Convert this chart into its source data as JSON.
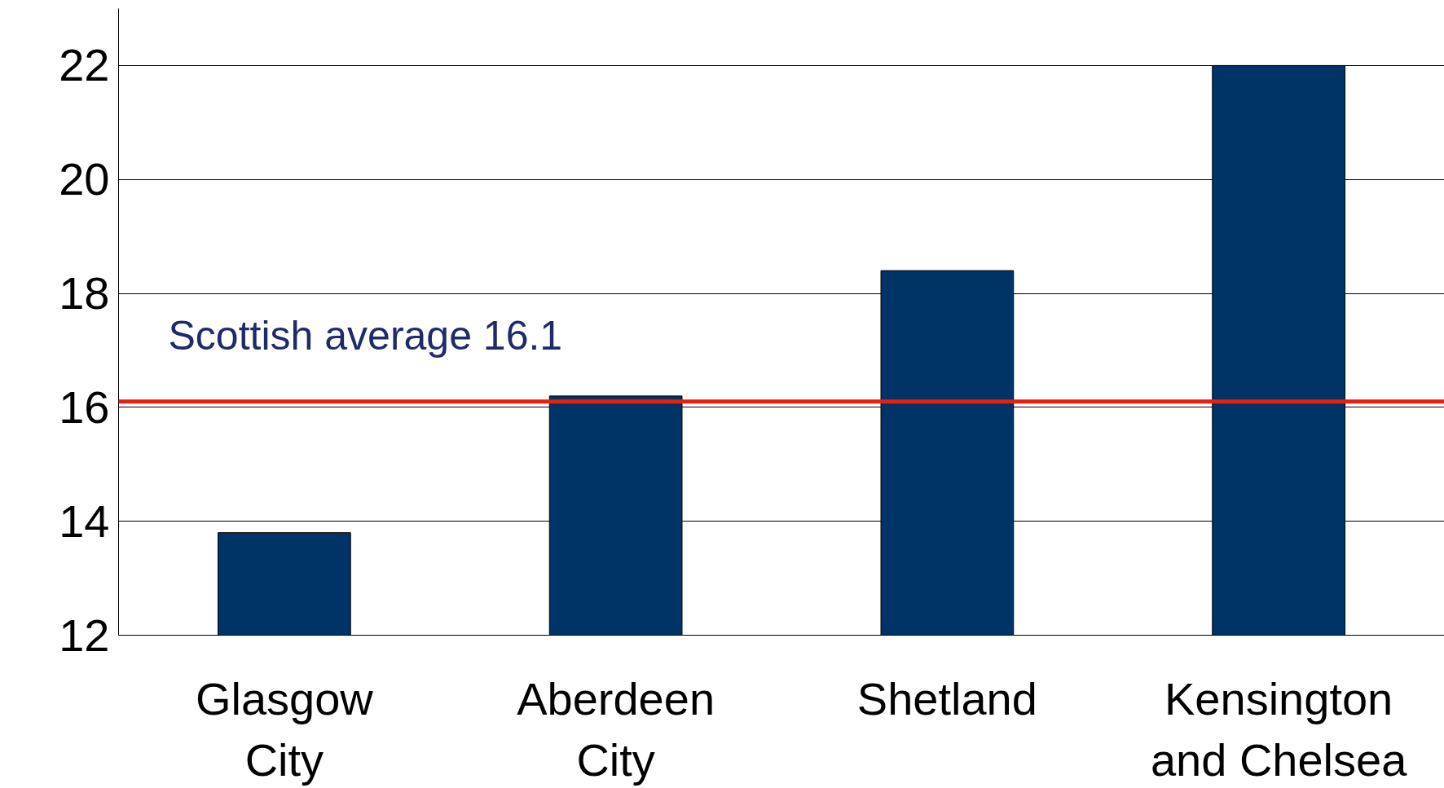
{
  "chart_data": {
    "type": "bar",
    "categories": [
      "Glasgow City",
      "Aberdeen City",
      "Shetland",
      "Kensington and Chelsea"
    ],
    "values": [
      13.8,
      16.2,
      18.4,
      22
    ],
    "color": "#003366",
    "ylim": [
      12,
      23
    ],
    "yticks": [
      12,
      14,
      16,
      18,
      20,
      22
    ],
    "grid": "y",
    "ref_lines": [
      {
        "axis": "y",
        "value": 16.1,
        "label": "Scottish average 16.1",
        "color": "#e8200e"
      }
    ]
  }
}
